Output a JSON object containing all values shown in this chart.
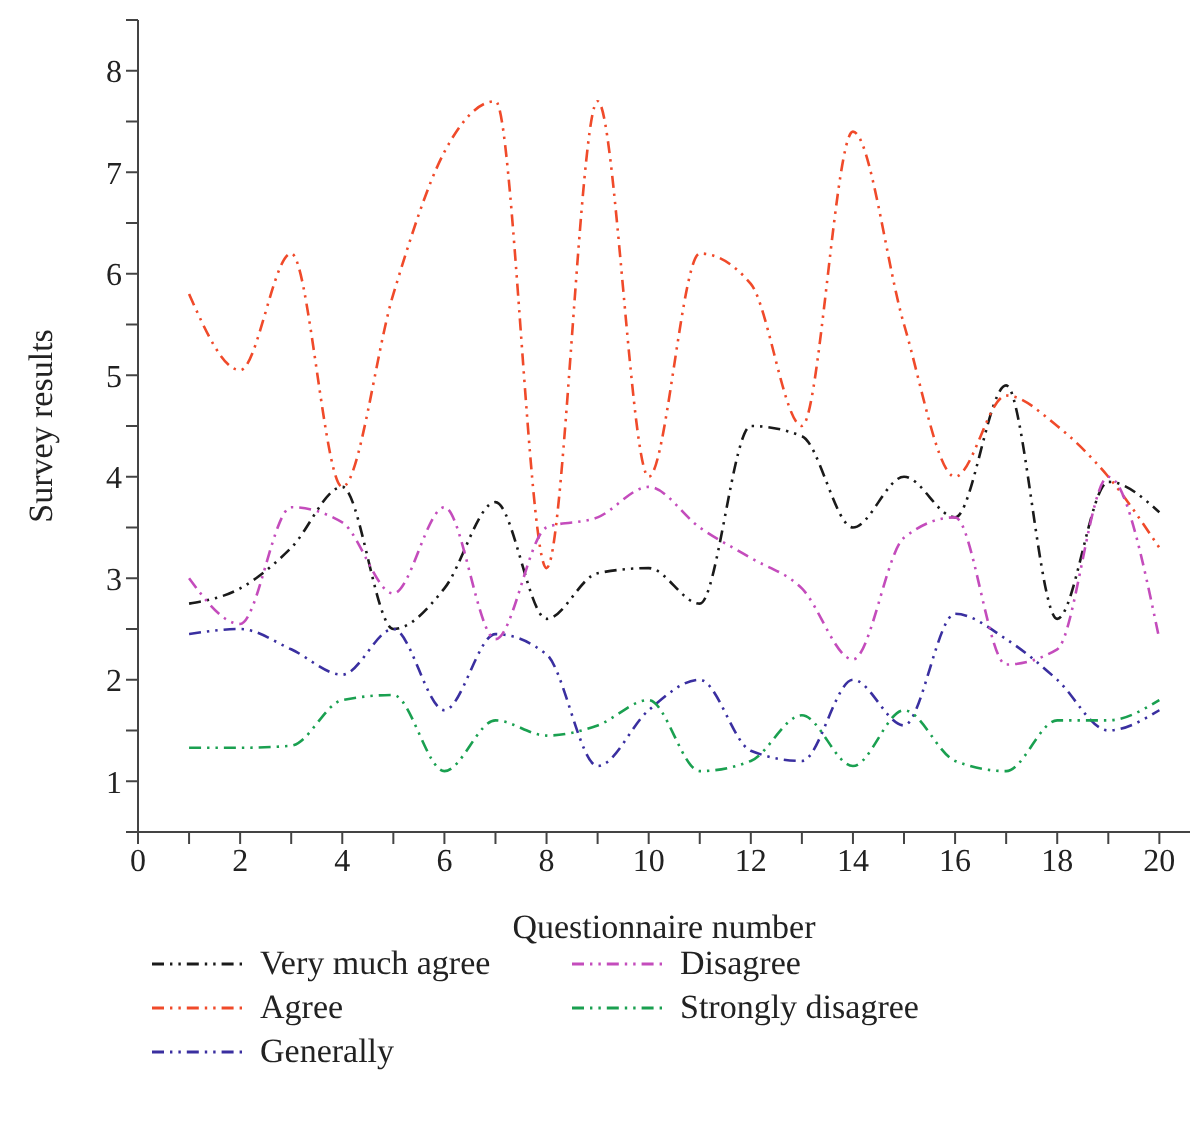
{
  "chart_data": {
    "type": "line",
    "xlabel": "Questionnaire number",
    "ylabel": "Survey results",
    "x": [
      1,
      2,
      3,
      4,
      5,
      6,
      7,
      8,
      9,
      10,
      11,
      12,
      13,
      14,
      15,
      16,
      17,
      18,
      19,
      20
    ],
    "series": [
      {
        "name": "Very much agree",
        "color": "#1a1a1a",
        "values": [
          2.75,
          2.9,
          3.3,
          3.9,
          2.5,
          2.9,
          3.75,
          2.6,
          3.05,
          3.1,
          2.75,
          4.5,
          4.4,
          3.5,
          4.0,
          3.6,
          4.9,
          2.6,
          3.95,
          3.65
        ]
      },
      {
        "name": "Agree",
        "color": "#f04a2a",
        "values": [
          5.8,
          5.05,
          6.2,
          3.9,
          5.8,
          7.2,
          7.7,
          3.1,
          7.7,
          4.0,
          6.2,
          5.9,
          4.5,
          7.4,
          5.5,
          4.0,
          4.8,
          4.5,
          4.0,
          3.3
        ]
      },
      {
        "name": "Generally",
        "color": "#3a2fa0",
        "values": [
          2.45,
          2.5,
          2.3,
          2.05,
          2.5,
          1.7,
          2.45,
          2.25,
          1.15,
          1.7,
          2.0,
          1.3,
          1.2,
          2.0,
          1.55,
          2.65,
          2.4,
          2.0,
          1.5,
          1.7
        ]
      },
      {
        "name": "Disagree",
        "color": "#c44cbc",
        "values": [
          3.0,
          2.55,
          3.7,
          3.55,
          2.85,
          3.7,
          2.4,
          3.5,
          3.6,
          3.9,
          3.5,
          3.2,
          2.9,
          2.2,
          3.4,
          3.6,
          2.15,
          2.3,
          4.0,
          2.4
        ]
      },
      {
        "name": "Strongly disagree",
        "color": "#1aa050",
        "values": [
          1.33,
          1.33,
          1.35,
          1.8,
          1.85,
          1.1,
          1.6,
          1.45,
          1.55,
          1.8,
          1.1,
          1.2,
          1.65,
          1.15,
          1.7,
          1.2,
          1.1,
          1.6,
          1.6,
          1.8
        ]
      }
    ],
    "xlim": [
      0,
      20.6
    ],
    "xticks": [
      0,
      {
        "value": 1,
        "label": null
      },
      2,
      {
        "value": 3,
        "label": null
      },
      4,
      {
        "value": 5,
        "label": null
      },
      6,
      {
        "value": 7,
        "label": null
      },
      8,
      {
        "value": 9,
        "label": null
      },
      10,
      {
        "value": 11,
        "label": null
      },
      12,
      {
        "value": 13,
        "label": null
      },
      14,
      {
        "value": 15,
        "label": null
      },
      16,
      {
        "value": 17,
        "label": null
      },
      18,
      {
        "value": 19,
        "label": null
      },
      20
    ],
    "ylim": [
      0.5,
      8.5
    ],
    "yticks": [
      {
        "value": 0.5,
        "label": null
      },
      1,
      {
        "value": 1.5,
        "label": null
      },
      2,
      {
        "value": 2.5,
        "label": null
      },
      3,
      {
        "value": 3.5,
        "label": null
      },
      4,
      {
        "value": 4.5,
        "label": null
      },
      5,
      {
        "value": 5.5,
        "label": null
      },
      6,
      {
        "value": 6.5,
        "label": null
      },
      7,
      {
        "value": 7.5,
        "label": null
      },
      8,
      {
        "value": 8.5,
        "label": null
      }
    ],
    "grid": false,
    "legend": "bottom",
    "marker": "none",
    "line_style": "dashed"
  }
}
